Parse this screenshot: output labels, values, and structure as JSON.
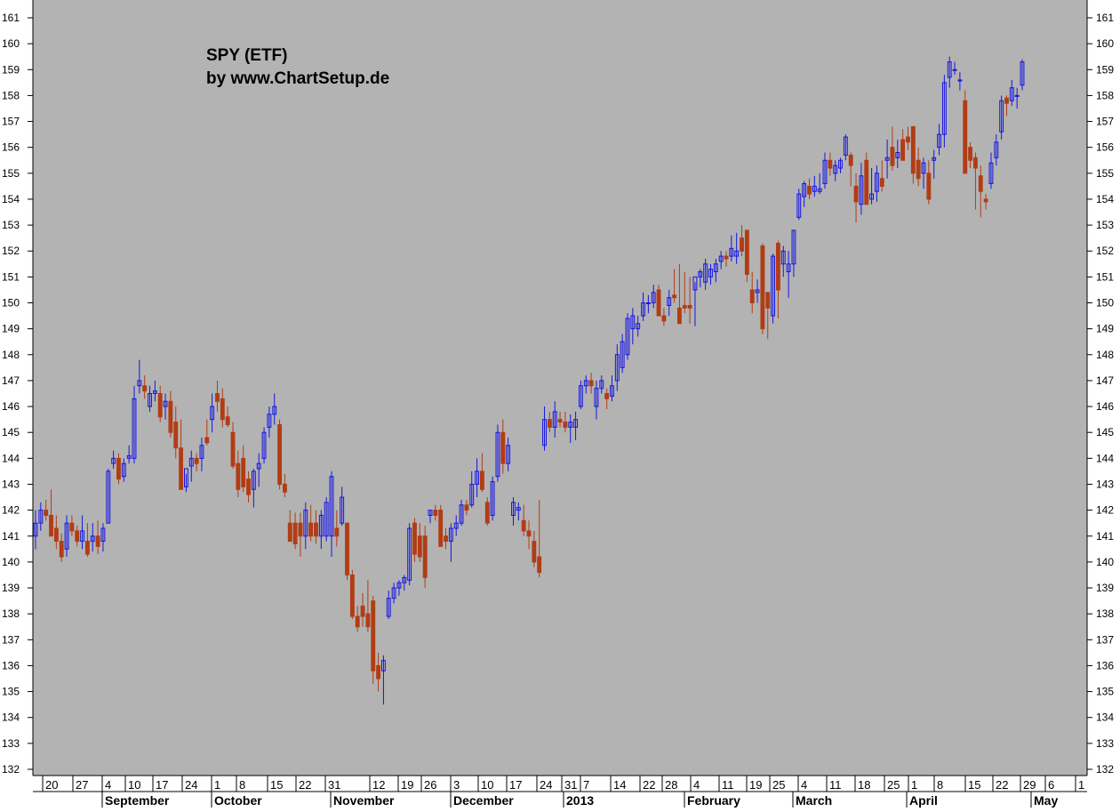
{
  "colors": {
    "background": "#b3b3b3",
    "up_candle": "#1414e6",
    "down_candle": "#b23c14",
    "text": "#000000"
  },
  "chart_data": {
    "type": "candlestick",
    "title": "SPY (ETF)",
    "subtitle": "by www.ChartSetup.de",
    "ylim": [
      131.5,
      162
    ],
    "y_ticks": [
      132,
      133,
      134,
      135,
      136,
      137,
      138,
      139,
      140,
      141,
      142,
      143,
      144,
      145,
      146,
      147,
      148,
      149,
      150,
      151,
      152,
      153,
      154,
      155,
      156,
      157,
      158,
      159,
      160,
      161
    ],
    "y_axis_sides": "left-and-right",
    "grid": false,
    "date_ticks": [
      "20",
      "27",
      "4",
      "10",
      "17",
      "24",
      "1",
      "8",
      "15",
      "22",
      "31",
      "12",
      "19",
      "26",
      "3",
      "10",
      "17",
      "24",
      "31",
      "7",
      "14",
      "22",
      "28",
      "4",
      "11",
      "19",
      "25",
      "4",
      "11",
      "18",
      "25",
      "1",
      "8",
      "15",
      "22",
      "29",
      "6",
      "1"
    ],
    "month_labels": [
      "September",
      "October",
      "November",
      "December",
      "2013",
      "February",
      "March",
      "April",
      "May"
    ],
    "colors_legend": {
      "up": "blue",
      "down": "red"
    },
    "series": [
      {
        "o": 141.0,
        "h": 142.0,
        "l": 140.5,
        "c": 141.5
      },
      {
        "o": 141.5,
        "h": 142.3,
        "l": 141.2,
        "c": 142.0
      },
      {
        "o": 142.0,
        "h": 142.4,
        "l": 141.6,
        "c": 141.8
      },
      {
        "o": 141.8,
        "h": 142.8,
        "l": 141.2,
        "c": 141.0
      },
      {
        "o": 141.3,
        "h": 141.8,
        "l": 140.5,
        "c": 140.8
      },
      {
        "o": 140.8,
        "h": 141.1,
        "l": 140.0,
        "c": 140.2
      },
      {
        "o": 140.5,
        "h": 141.8,
        "l": 140.2,
        "c": 141.5
      },
      {
        "o": 141.5,
        "h": 141.8,
        "l": 141.0,
        "c": 141.2
      },
      {
        "o": 141.2,
        "h": 141.4,
        "l": 140.6,
        "c": 140.8
      },
      {
        "o": 140.8,
        "h": 141.8,
        "l": 140.5,
        "c": 141.2
      },
      {
        "o": 140.8,
        "h": 141.5,
        "l": 140.2,
        "c": 140.3
      },
      {
        "o": 140.8,
        "h": 141.5,
        "l": 140.4,
        "c": 141.0
      },
      {
        "o": 141.0,
        "h": 141.6,
        "l": 140.3,
        "c": 140.6
      },
      {
        "o": 140.8,
        "h": 141.5,
        "l": 140.4,
        "c": 141.3
      },
      {
        "o": 141.5,
        "h": 143.6,
        "l": 141.5,
        "c": 143.5
      },
      {
        "o": 143.8,
        "h": 144.3,
        "l": 143.6,
        "c": 144.0
      },
      {
        "o": 144.0,
        "h": 144.2,
        "l": 143.0,
        "c": 143.2
      },
      {
        "o": 143.3,
        "h": 144.0,
        "l": 143.1,
        "c": 143.8
      },
      {
        "o": 144.0,
        "h": 144.5,
        "l": 143.8,
        "c": 144.1
      },
      {
        "o": 144.0,
        "h": 146.8,
        "l": 143.8,
        "c": 146.3
      },
      {
        "o": 146.8,
        "h": 147.8,
        "l": 146.5,
        "c": 147.0
      },
      {
        "o": 146.8,
        "h": 147.2,
        "l": 146.3,
        "c": 146.6
      },
      {
        "o": 146.0,
        "h": 146.8,
        "l": 145.8,
        "c": 146.5
      },
      {
        "o": 146.5,
        "h": 147.0,
        "l": 146.2,
        "c": 146.6
      },
      {
        "o": 146.5,
        "h": 146.8,
        "l": 145.4,
        "c": 145.6
      },
      {
        "o": 146.0,
        "h": 146.5,
        "l": 145.5,
        "c": 146.2
      },
      {
        "o": 146.2,
        "h": 146.6,
        "l": 144.8,
        "c": 145.0
      },
      {
        "o": 145.4,
        "h": 146.0,
        "l": 144.0,
        "c": 144.4
      },
      {
        "o": 144.4,
        "h": 145.5,
        "l": 143.0,
        "c": 142.8
      },
      {
        "o": 142.9,
        "h": 143.4,
        "l": 142.7,
        "c": 143.6
      },
      {
        "o": 143.7,
        "h": 144.3,
        "l": 143.1,
        "c": 144.0
      },
      {
        "o": 144.0,
        "h": 144.2,
        "l": 143.5,
        "c": 143.8
      },
      {
        "o": 144.0,
        "h": 144.8,
        "l": 143.5,
        "c": 144.5
      },
      {
        "o": 144.8,
        "h": 145.5,
        "l": 144.5,
        "c": 144.6
      },
      {
        "o": 145.5,
        "h": 146.5,
        "l": 145.0,
        "c": 146.0
      },
      {
        "o": 146.5,
        "h": 147.0,
        "l": 145.8,
        "c": 146.2
      },
      {
        "o": 146.3,
        "h": 146.7,
        "l": 145.2,
        "c": 145.5
      },
      {
        "o": 145.6,
        "h": 146.0,
        "l": 145.2,
        "c": 145.3
      },
      {
        "o": 145.0,
        "h": 145.4,
        "l": 143.6,
        "c": 143.7
      },
      {
        "o": 143.8,
        "h": 144.3,
        "l": 142.5,
        "c": 142.8
      },
      {
        "o": 144.0,
        "h": 144.5,
        "l": 142.7,
        "c": 142.9
      },
      {
        "o": 143.2,
        "h": 143.5,
        "l": 142.3,
        "c": 142.6
      },
      {
        "o": 142.8,
        "h": 143.6,
        "l": 142.1,
        "c": 143.5
      },
      {
        "o": 143.6,
        "h": 144.2,
        "l": 142.9,
        "c": 143.8
      },
      {
        "o": 144.0,
        "h": 145.2,
        "l": 143.8,
        "c": 145.0
      },
      {
        "o": 145.2,
        "h": 146.0,
        "l": 144.8,
        "c": 145.7
      },
      {
        "o": 145.7,
        "h": 146.5,
        "l": 145.3,
        "c": 146.0
      },
      {
        "o": 145.3,
        "h": 145.5,
        "l": 142.8,
        "c": 143.0
      },
      {
        "o": 143.0,
        "h": 143.4,
        "l": 142.5,
        "c": 142.7
      },
      {
        "o": 141.5,
        "h": 142.0,
        "l": 140.8,
        "c": 140.8
      },
      {
        "o": 141.5,
        "h": 141.9,
        "l": 140.5,
        "c": 140.7
      },
      {
        "o": 141.5,
        "h": 141.9,
        "l": 140.2,
        "c": 141.0
      },
      {
        "o": 141.0,
        "h": 142.3,
        "l": 140.5,
        "c": 142.0
      },
      {
        "o": 141.5,
        "h": 142.2,
        "l": 140.8,
        "c": 141.0
      },
      {
        "o": 141.5,
        "h": 142.0,
        "l": 140.7,
        "c": 141.0
      },
      {
        "o": 141.0,
        "h": 142.0,
        "l": 140.5,
        "c": 141.8
      },
      {
        "o": 141.0,
        "h": 142.5,
        "l": 140.8,
        "c": 142.3
      },
      {
        "o": 141.0,
        "h": 143.5,
        "l": 140.2,
        "c": 143.3
      },
      {
        "o": 141.3,
        "h": 142.0,
        "l": 140.6,
        "c": 141.0
      },
      {
        "o": 141.5,
        "h": 142.9,
        "l": 141.4,
        "c": 142.5
      },
      {
        "o": 141.5,
        "h": 141.5,
        "l": 139.3,
        "c": 139.5
      },
      {
        "o": 139.5,
        "h": 139.7,
        "l": 137.8,
        "c": 137.9
      },
      {
        "o": 137.9,
        "h": 138.3,
        "l": 137.3,
        "c": 137.5
      },
      {
        "o": 138.3,
        "h": 138.8,
        "l": 137.5,
        "c": 137.9
      },
      {
        "o": 138.0,
        "h": 139.3,
        "l": 137.3,
        "c": 137.5
      },
      {
        "o": 138.5,
        "h": 138.7,
        "l": 135.3,
        "c": 135.8
      },
      {
        "o": 136.0,
        "h": 136.5,
        "l": 135.0,
        "c": 135.5
      },
      {
        "o": 135.8,
        "h": 136.4,
        "l": 134.5,
        "c": 136.2
      },
      {
        "o": 137.9,
        "h": 138.9,
        "l": 137.8,
        "c": 138.6
      },
      {
        "o": 138.6,
        "h": 139.2,
        "l": 138.4,
        "c": 139.0
      },
      {
        "o": 139.0,
        "h": 139.3,
        "l": 138.7,
        "c": 139.2
      },
      {
        "o": 139.2,
        "h": 139.5,
        "l": 138.9,
        "c": 139.4
      },
      {
        "o": 139.3,
        "h": 141.5,
        "l": 139.1,
        "c": 141.3
      },
      {
        "o": 141.5,
        "h": 141.7,
        "l": 140.0,
        "c": 140.3
      },
      {
        "o": 141.0,
        "h": 141.5,
        "l": 140.0,
        "c": 140.2
      },
      {
        "o": 141.0,
        "h": 141.4,
        "l": 139.0,
        "c": 139.4
      },
      {
        "o": 141.8,
        "h": 142.0,
        "l": 141.5,
        "c": 142.0
      },
      {
        "o": 142.0,
        "h": 142.2,
        "l": 141.6,
        "c": 141.8
      },
      {
        "o": 142.0,
        "h": 142.2,
        "l": 140.8,
        "c": 140.6
      },
      {
        "o": 141.0,
        "h": 141.3,
        "l": 140.5,
        "c": 140.8
      },
      {
        "o": 140.8,
        "h": 141.5,
        "l": 140.0,
        "c": 141.3
      },
      {
        "o": 141.3,
        "h": 141.8,
        "l": 141.0,
        "c": 141.5
      },
      {
        "o": 141.5,
        "h": 142.4,
        "l": 141.4,
        "c": 142.2
      },
      {
        "o": 142.2,
        "h": 142.4,
        "l": 141.8,
        "c": 142.0
      },
      {
        "o": 142.2,
        "h": 143.5,
        "l": 142.1,
        "c": 143.0
      },
      {
        "o": 143.0,
        "h": 144.0,
        "l": 142.5,
        "c": 143.5
      },
      {
        "o": 143.5,
        "h": 144.2,
        "l": 142.7,
        "c": 142.8
      },
      {
        "o": 142.3,
        "h": 142.5,
        "l": 141.4,
        "c": 141.5
      },
      {
        "o": 141.8,
        "h": 143.3,
        "l": 141.6,
        "c": 143.1
      },
      {
        "o": 143.3,
        "h": 145.3,
        "l": 143.1,
        "c": 145.0
      },
      {
        "o": 145.0,
        "h": 145.5,
        "l": 143.4,
        "c": 143.8
      },
      {
        "o": 143.8,
        "h": 144.8,
        "l": 143.5,
        "c": 144.5
      },
      {
        "o": 141.8,
        "h": 142.5,
        "l": 141.4,
        "c": 142.3
      },
      {
        "o": 142.0,
        "h": 142.3,
        "l": 141.6,
        "c": 142.1
      },
      {
        "o": 141.6,
        "h": 142.2,
        "l": 141.0,
        "c": 141.2
      },
      {
        "o": 141.2,
        "h": 141.6,
        "l": 140.5,
        "c": 141.0
      },
      {
        "o": 140.8,
        "h": 141.2,
        "l": 139.8,
        "c": 140.0
      },
      {
        "o": 140.2,
        "h": 142.4,
        "l": 139.4,
        "c": 139.6
      },
      {
        "o": 144.5,
        "h": 146.0,
        "l": 144.3,
        "c": 145.5
      },
      {
        "o": 145.5,
        "h": 145.8,
        "l": 145.0,
        "c": 145.2
      },
      {
        "o": 145.2,
        "h": 146.2,
        "l": 144.8,
        "c": 145.8
      },
      {
        "o": 145.5,
        "h": 145.8,
        "l": 145.2,
        "c": 145.4
      },
      {
        "o": 145.4,
        "h": 145.8,
        "l": 145.0,
        "c": 145.2
      },
      {
        "o": 145.2,
        "h": 145.7,
        "l": 144.6,
        "c": 145.4
      },
      {
        "o": 145.2,
        "h": 145.8,
        "l": 144.7,
        "c": 145.5
      },
      {
        "o": 146.0,
        "h": 147.0,
        "l": 145.9,
        "c": 146.8
      },
      {
        "o": 146.8,
        "h": 147.2,
        "l": 146.5,
        "c": 147.0
      },
      {
        "o": 147.0,
        "h": 147.3,
        "l": 146.5,
        "c": 146.8
      },
      {
        "o": 146.0,
        "h": 147.0,
        "l": 145.5,
        "c": 146.7
      },
      {
        "o": 146.7,
        "h": 147.2,
        "l": 146.5,
        "c": 147.0
      },
      {
        "o": 146.5,
        "h": 146.7,
        "l": 145.9,
        "c": 146.3
      },
      {
        "o": 146.4,
        "h": 147.2,
        "l": 146.2,
        "c": 146.8
      },
      {
        "o": 147.0,
        "h": 148.4,
        "l": 146.6,
        "c": 148.0
      },
      {
        "o": 147.5,
        "h": 148.8,
        "l": 147.3,
        "c": 148.5
      },
      {
        "o": 148.0,
        "h": 149.6,
        "l": 147.8,
        "c": 149.4
      },
      {
        "o": 149.0,
        "h": 149.8,
        "l": 148.4,
        "c": 149.5
      },
      {
        "o": 149.0,
        "h": 149.5,
        "l": 148.7,
        "c": 149.2
      },
      {
        "o": 149.5,
        "h": 150.4,
        "l": 149.3,
        "c": 150.0
      },
      {
        "o": 150.0,
        "h": 150.3,
        "l": 149.6,
        "c": 150.0
      },
      {
        "o": 150.0,
        "h": 150.7,
        "l": 149.8,
        "c": 150.4
      },
      {
        "o": 150.5,
        "h": 150.7,
        "l": 149.8,
        "c": 149.5
      },
      {
        "o": 149.5,
        "h": 149.8,
        "l": 149.1,
        "c": 149.3
      },
      {
        "o": 149.9,
        "h": 150.5,
        "l": 149.5,
        "c": 150.2
      },
      {
        "o": 150.3,
        "h": 151.3,
        "l": 150.0,
        "c": 150.2
      },
      {
        "o": 149.8,
        "h": 151.5,
        "l": 149.4,
        "c": 149.2
      },
      {
        "o": 149.9,
        "h": 151.2,
        "l": 149.6,
        "c": 149.8
      },
      {
        "o": 149.9,
        "h": 151.0,
        "l": 149.2,
        "c": 149.8
      },
      {
        "o": 150.5,
        "h": 150.8,
        "l": 149.1,
        "c": 151.0
      },
      {
        "o": 151.0,
        "h": 151.3,
        "l": 150.6,
        "c": 151.2
      },
      {
        "o": 150.8,
        "h": 151.7,
        "l": 150.5,
        "c": 151.5
      },
      {
        "o": 151.0,
        "h": 151.5,
        "l": 150.7,
        "c": 151.3
      },
      {
        "o": 151.2,
        "h": 151.7,
        "l": 150.8,
        "c": 151.5
      },
      {
        "o": 151.6,
        "h": 152.0,
        "l": 151.3,
        "c": 151.8
      },
      {
        "o": 151.8,
        "h": 152.0,
        "l": 151.4,
        "c": 151.7
      },
      {
        "o": 151.8,
        "h": 152.6,
        "l": 151.6,
        "c": 152.1
      },
      {
        "o": 151.8,
        "h": 152.7,
        "l": 151.5,
        "c": 152.0
      },
      {
        "o": 152.5,
        "h": 153.0,
        "l": 151.8,
        "c": 152.0
      },
      {
        "o": 152.8,
        "h": 152.8,
        "l": 150.8,
        "c": 151.1
      },
      {
        "o": 150.5,
        "h": 151.2,
        "l": 149.6,
        "c": 150.0
      },
      {
        "o": 150.4,
        "h": 150.9,
        "l": 150.0,
        "c": 150.5
      },
      {
        "o": 152.2,
        "h": 152.3,
        "l": 148.8,
        "c": 149.0
      },
      {
        "o": 150.4,
        "h": 150.4,
        "l": 148.6,
        "c": 149.8
      },
      {
        "o": 149.5,
        "h": 151.9,
        "l": 149.2,
        "c": 151.8
      },
      {
        "o": 152.3,
        "h": 152.4,
        "l": 149.4,
        "c": 150.5
      },
      {
        "o": 151.5,
        "h": 152.2,
        "l": 151.0,
        "c": 152.0
      },
      {
        "o": 151.2,
        "h": 152.0,
        "l": 150.2,
        "c": 151.5
      },
      {
        "o": 151.5,
        "h": 152.8,
        "l": 151.0,
        "c": 152.8
      },
      {
        "o": 153.3,
        "h": 154.4,
        "l": 153.2,
        "c": 154.2
      },
      {
        "o": 154.1,
        "h": 154.7,
        "l": 153.7,
        "c": 154.6
      },
      {
        "o": 154.5,
        "h": 154.8,
        "l": 154.0,
        "c": 154.2
      },
      {
        "o": 154.3,
        "h": 154.9,
        "l": 154.1,
        "c": 154.5
      },
      {
        "o": 154.3,
        "h": 155.0,
        "l": 154.2,
        "c": 154.4
      },
      {
        "o": 154.6,
        "h": 155.8,
        "l": 154.4,
        "c": 155.5
      },
      {
        "o": 155.5,
        "h": 155.8,
        "l": 154.9,
        "c": 155.2
      },
      {
        "o": 155.0,
        "h": 155.5,
        "l": 154.7,
        "c": 155.3
      },
      {
        "o": 155.2,
        "h": 155.6,
        "l": 155.0,
        "c": 155.5
      },
      {
        "o": 155.7,
        "h": 156.5,
        "l": 155.5,
        "c": 156.4
      },
      {
        "o": 155.7,
        "h": 155.8,
        "l": 154.5,
        "c": 155.3
      },
      {
        "o": 154.5,
        "h": 155.0,
        "l": 153.1,
        "c": 153.9
      },
      {
        "o": 153.8,
        "h": 155.4,
        "l": 153.4,
        "c": 154.9
      },
      {
        "o": 155.5,
        "h": 155.8,
        "l": 154.0,
        "c": 153.8
      },
      {
        "o": 154.0,
        "h": 155.2,
        "l": 153.8,
        "c": 154.2
      },
      {
        "o": 154.3,
        "h": 155.3,
        "l": 153.9,
        "c": 155.0
      },
      {
        "o": 154.8,
        "h": 155.5,
        "l": 154.3,
        "c": 154.5
      },
      {
        "o": 155.5,
        "h": 156.3,
        "l": 154.8,
        "c": 155.6
      },
      {
        "o": 156.0,
        "h": 156.8,
        "l": 155.1,
        "c": 155.3
      },
      {
        "o": 155.6,
        "h": 156.3,
        "l": 155.2,
        "c": 155.8
      },
      {
        "o": 156.3,
        "h": 156.7,
        "l": 155.7,
        "c": 155.5
      },
      {
        "o": 156.4,
        "h": 156.8,
        "l": 155.9,
        "c": 156.2
      },
      {
        "o": 156.8,
        "h": 156.8,
        "l": 154.6,
        "c": 155.0
      },
      {
        "o": 155.5,
        "h": 156.0,
        "l": 154.5,
        "c": 154.8
      },
      {
        "o": 155.0,
        "h": 155.6,
        "l": 154.4,
        "c": 155.4
      },
      {
        "o": 155.0,
        "h": 155.5,
        "l": 153.8,
        "c": 154.0
      },
      {
        "o": 155.5,
        "h": 155.9,
        "l": 154.8,
        "c": 155.6
      },
      {
        "o": 156.0,
        "h": 156.9,
        "l": 155.7,
        "c": 156.5
      },
      {
        "o": 156.5,
        "h": 158.8,
        "l": 156.0,
        "c": 158.5
      },
      {
        "o": 158.7,
        "h": 159.5,
        "l": 158.3,
        "c": 159.3
      },
      {
        "o": 159.0,
        "h": 159.3,
        "l": 158.8,
        "c": 159.0
      },
      {
        "o": 158.6,
        "h": 158.9,
        "l": 158.2,
        "c": 158.6
      },
      {
        "o": 157.8,
        "h": 158.2,
        "l": 155.0,
        "c": 155.0
      },
      {
        "o": 156.0,
        "h": 156.2,
        "l": 155.2,
        "c": 155.5
      },
      {
        "o": 155.6,
        "h": 155.8,
        "l": 153.6,
        "c": 155.2
      },
      {
        "o": 154.9,
        "h": 155.3,
        "l": 153.3,
        "c": 154.3
      },
      {
        "o": 154.0,
        "h": 154.2,
        "l": 153.6,
        "c": 153.9
      },
      {
        "o": 154.6,
        "h": 155.8,
        "l": 154.4,
        "c": 155.4
      },
      {
        "o": 155.6,
        "h": 156.5,
        "l": 155.3,
        "c": 156.2
      },
      {
        "o": 156.6,
        "h": 158.0,
        "l": 156.3,
        "c": 157.8
      },
      {
        "o": 157.9,
        "h": 158.0,
        "l": 157.2,
        "c": 157.7
      },
      {
        "o": 157.8,
        "h": 158.6,
        "l": 157.6,
        "c": 158.3
      },
      {
        "o": 158.0,
        "h": 158.3,
        "l": 157.5,
        "c": 158.0
      },
      {
        "o": 158.4,
        "h": 159.4,
        "l": 158.2,
        "c": 159.3
      }
    ]
  }
}
